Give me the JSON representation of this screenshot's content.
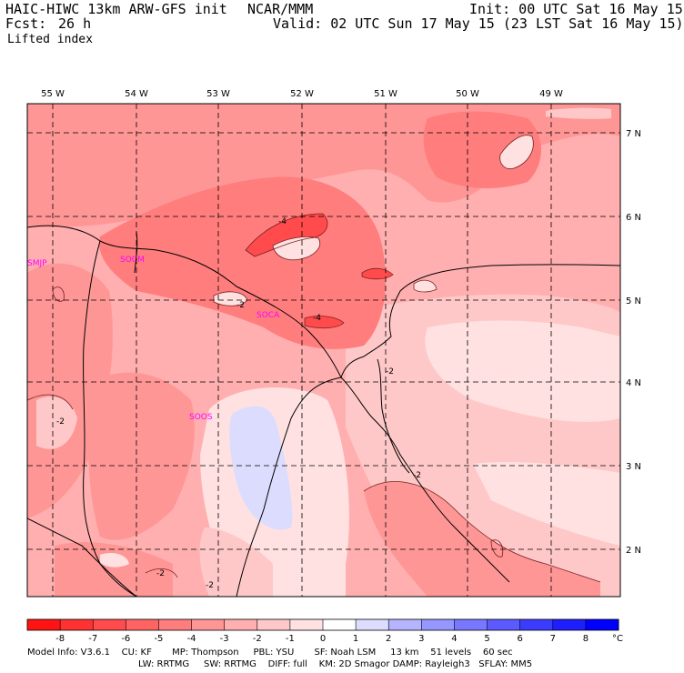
{
  "header": {
    "model": "HAIC-HIWC 13km ARW-GFS init",
    "org": "NCAR/MMM",
    "init": "Init: 00 UTC Sat 16 May 15",
    "fcst_label": "Fcst:",
    "fcst_value": "26 h",
    "valid": "Valid: 02 UTC Sun 17 May 15 (23 LST Sat 16 May 15)",
    "field": "Lifted index"
  },
  "map": {
    "lon_labels": [
      "55 W",
      "54 W",
      "53 W",
      "52 W",
      "51 W",
      "50 W",
      "49 W"
    ],
    "lat_labels": [
      "7 N",
      "6 N",
      "5 N",
      "4 N",
      "3 N",
      "2 N"
    ],
    "stations": [
      "SMJP",
      "SOCM",
      "SOCA",
      "SOOS"
    ],
    "contour_labels": [
      "-4",
      "-4",
      "-2",
      "-2",
      "-2",
      "-2",
      "-2",
      "-2"
    ]
  },
  "colorbar": {
    "ticks": [
      "-8",
      "-7",
      "-6",
      "-5",
      "-4",
      "-3",
      "-2",
      "-1",
      "0",
      "1",
      "2",
      "3",
      "4",
      "5",
      "6",
      "7",
      "8"
    ],
    "unit": "°C",
    "colors": [
      "#ff1414",
      "#ff3232",
      "#ff4b4b",
      "#ff6464",
      "#ff7d7d",
      "#ff9696",
      "#ffafaf",
      "#ffc8c8",
      "#ffe1e1",
      "#ffffff",
      "#dcdcff",
      "#b4b4ff",
      "#9696ff",
      "#7878ff",
      "#5a5aff",
      "#3c3cff",
      "#1e1eff",
      "#0000ff"
    ]
  },
  "footer": {
    "line1": "Model Info: V3.6.1    CU: KF       MP: Thompson     PBL: YSU       SF: Noah LSM     13 km    51 levels    60 sec",
    "line2": "LW: RRTMG     SW: RRTMG    DIFF: full    KM: 2D Smagor DAMP: Rayleigh3   SFLAY: MM5"
  }
}
